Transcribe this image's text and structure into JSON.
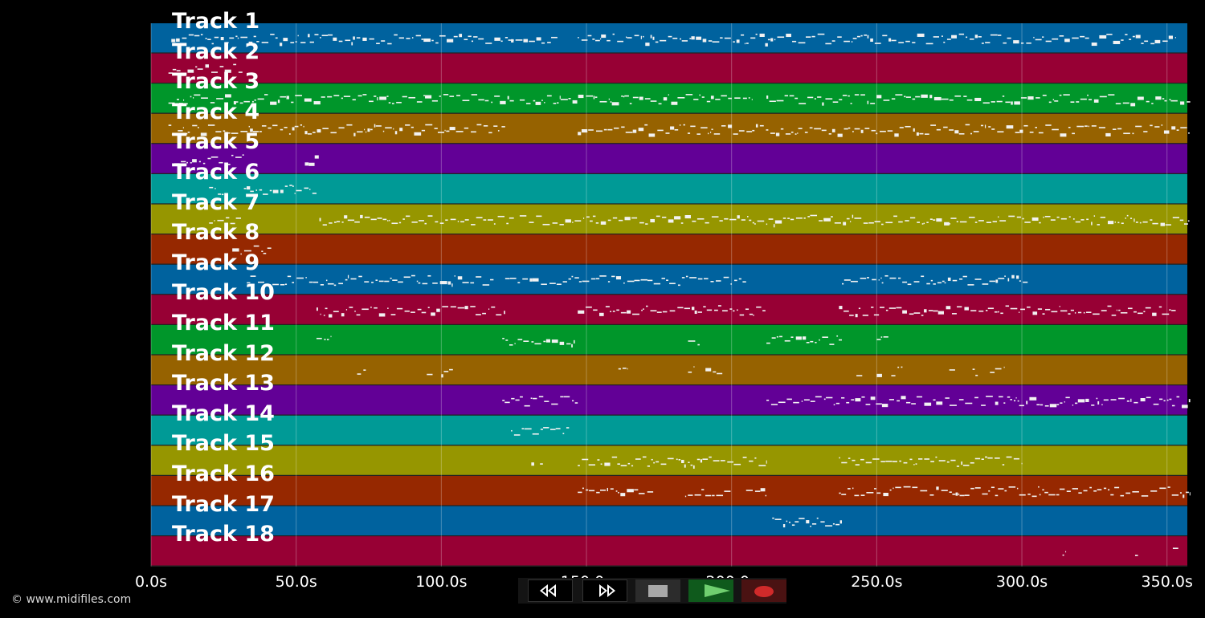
{
  "app": {
    "copyright": "© www.midifiles.com"
  },
  "tracks": [
    {
      "label": "Track 1",
      "color": "#00629e"
    },
    {
      "label": "Track 2",
      "color": "#970034"
    },
    {
      "label": "Track 3",
      "color": "#00962a"
    },
    {
      "label": "Track 4",
      "color": "#966200"
    },
    {
      "label": "Track 5",
      "color": "#620096"
    },
    {
      "label": "Track 6",
      "color": "#009a96"
    },
    {
      "label": "Track 7",
      "color": "#969600"
    },
    {
      "label": "Track 8",
      "color": "#962800"
    },
    {
      "label": "Track 9",
      "color": "#00629e"
    },
    {
      "label": "Track 10",
      "color": "#970034"
    },
    {
      "label": "Track 11",
      "color": "#00962a"
    },
    {
      "label": "Track 12",
      "color": "#966200"
    },
    {
      "label": "Track 13",
      "color": "#620096"
    },
    {
      "label": "Track 14",
      "color": "#009a96"
    },
    {
      "label": "Track 15",
      "color": "#969600"
    },
    {
      "label": "Track 16",
      "color": "#962800"
    },
    {
      "label": "Track 17",
      "color": "#00629e"
    },
    {
      "label": "Track 18",
      "color": "#970034"
    }
  ],
  "timeline": {
    "ticks": [
      "0.0s",
      "50.0s",
      "100.0s",
      "150.0s",
      "200.0s",
      "250.0s",
      "300.0s",
      "350.0s"
    ],
    "tick_values": [
      0,
      50,
      100,
      150,
      200,
      250,
      300,
      350
    ],
    "range_seconds": [
      0,
      357
    ]
  },
  "note_activity": [
    [
      [
        7,
        125
      ],
      [
        124,
        140
      ],
      [
        147,
        353
      ]
    ],
    [
      [
        6,
        32
      ]
    ],
    [
      [
        6,
        125
      ],
      [
        127,
        207
      ],
      [
        212,
        358
      ]
    ],
    [
      [
        6,
        122
      ],
      [
        147,
        358
      ]
    ],
    [
      [
        8,
        32
      ],
      [
        53,
        58
      ]
    ],
    [
      [
        20,
        25
      ],
      [
        32,
        57
      ]
    ],
    [
      [
        20,
        31
      ],
      [
        58,
        125
      ],
      [
        127,
        358
      ]
    ],
    [
      [
        28,
        42
      ]
    ],
    [
      [
        33,
        118
      ],
      [
        122,
        205
      ],
      [
        238,
        302
      ]
    ],
    [
      [
        57,
        122
      ],
      [
        147,
        212
      ],
      [
        237,
        353
      ]
    ],
    [
      [
        57,
        62
      ],
      [
        121,
        146
      ],
      [
        185,
        189
      ],
      [
        212,
        238
      ],
      [
        250,
        254
      ]
    ],
    [
      [
        71,
        74
      ],
      [
        95,
        97
      ],
      [
        100,
        104
      ],
      [
        161,
        164
      ],
      [
        185,
        187
      ],
      [
        191,
        197
      ],
      [
        243,
        245
      ],
      [
        250,
        252
      ],
      [
        255,
        259
      ],
      [
        275,
        277
      ],
      [
        283,
        285
      ],
      [
        289,
        294
      ]
    ],
    [
      [
        121,
        147
      ],
      [
        212,
        358
      ]
    ],
    [
      [
        124,
        144
      ]
    ],
    [
      [
        131,
        132
      ],
      [
        134,
        135
      ],
      [
        147,
        212
      ],
      [
        237,
        300
      ]
    ],
    [
      [
        147,
        173
      ],
      [
        184,
        200
      ],
      [
        205,
        212
      ],
      [
        237,
        358
      ]
    ],
    [
      [
        214,
        238
      ]
    ],
    [
      [
        314,
        315
      ],
      [
        339,
        340
      ],
      [
        352,
        354
      ]
    ]
  ],
  "transport": {
    "buttons": [
      {
        "name": "rewind-button",
        "icon": "rewind-icon"
      },
      {
        "name": "fast-forward-button",
        "icon": "fast-forward-icon"
      },
      {
        "name": "stop-button",
        "icon": "stop-icon"
      },
      {
        "name": "play-button",
        "icon": "play-icon",
        "color": "#6fcf6f"
      },
      {
        "name": "record-button",
        "icon": "record-icon",
        "color": "#d02a2a"
      }
    ]
  }
}
